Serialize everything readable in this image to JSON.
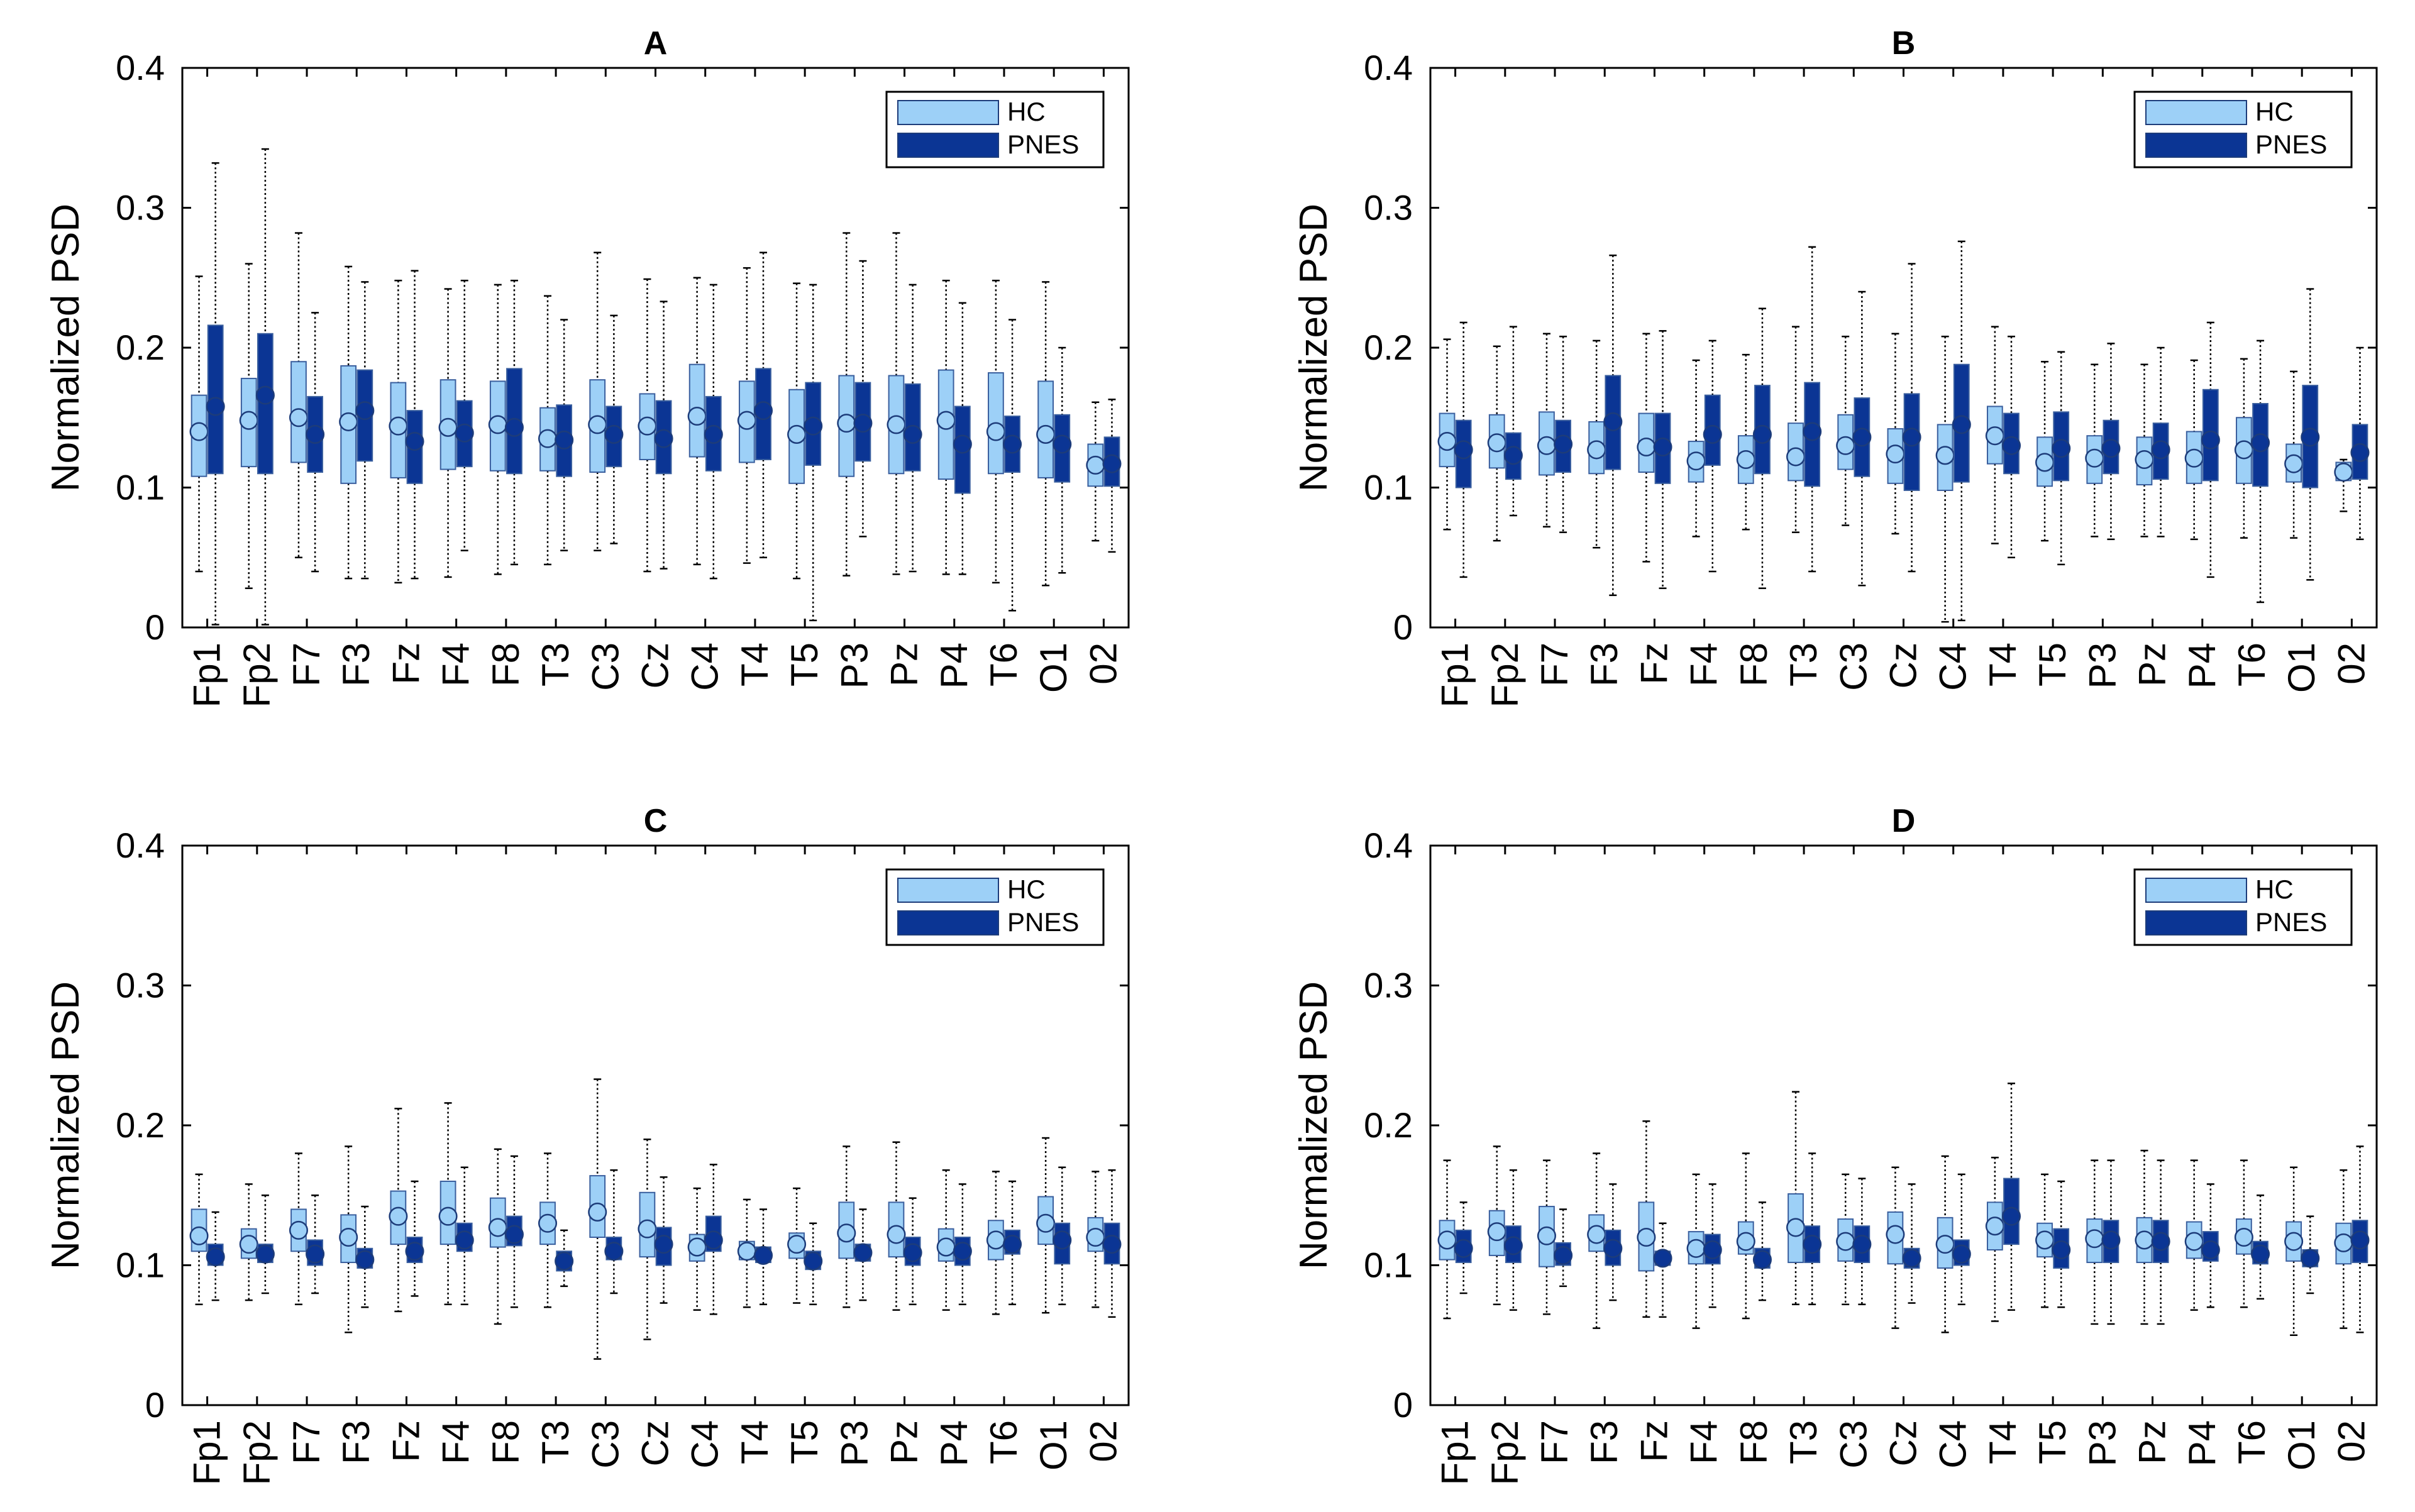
{
  "figure": {
    "colors": {
      "hc": "#9dd0f7",
      "pnes": "#0b3594",
      "frame": "#000000",
      "whisker": "#000000"
    },
    "legend": {
      "hc": "HC",
      "pnes": "PNES"
    }
  },
  "chart_data": [
    {
      "type": "box",
      "title": "A",
      "ylabel": "Normalized  PSD",
      "ylim": [
        0,
        0.4
      ],
      "yticks": [
        "0",
        "0.1",
        "0.2",
        "0.3",
        "0.4"
      ],
      "legend_position": "top-right",
      "categories": [
        "Fp1",
        "Fp2",
        "F7",
        "F3",
        "Fz",
        "F4",
        "F8",
        "T3",
        "C3",
        "Cz",
        "C4",
        "T4",
        "T5",
        "P3",
        "Pz",
        "P4",
        "T6",
        "O1",
        "02"
      ],
      "series": [
        {
          "name": "HC",
          "q1": [
            0.108,
            0.115,
            0.118,
            0.103,
            0.107,
            0.113,
            0.112,
            0.112,
            0.111,
            0.12,
            0.122,
            0.118,
            0.103,
            0.108,
            0.11,
            0.106,
            0.11,
            0.107,
            0.101
          ],
          "median": [
            0.14,
            0.148,
            0.15,
            0.147,
            0.144,
            0.143,
            0.145,
            0.135,
            0.145,
            0.144,
            0.151,
            0.148,
            0.138,
            0.146,
            0.145,
            0.148,
            0.14,
            0.138,
            0.116
          ],
          "q3": [
            0.166,
            0.178,
            0.19,
            0.187,
            0.175,
            0.177,
            0.176,
            0.157,
            0.177,
            0.167,
            0.188,
            0.176,
            0.17,
            0.18,
            0.18,
            0.184,
            0.182,
            0.176,
            0.131
          ],
          "whisker_low": [
            0.04,
            0.028,
            0.05,
            0.035,
            0.032,
            0.036,
            0.038,
            0.045,
            0.055,
            0.04,
            0.045,
            0.046,
            0.035,
            0.037,
            0.038,
            0.038,
            0.032,
            0.03,
            0.062
          ],
          "whisker_high": [
            0.251,
            0.26,
            0.282,
            0.258,
            0.248,
            0.242,
            0.245,
            0.237,
            0.268,
            0.249,
            0.25,
            0.257,
            0.246,
            0.282,
            0.282,
            0.248,
            0.248,
            0.247,
            0.161
          ]
        },
        {
          "name": "PNES",
          "q1": [
            0.11,
            0.11,
            0.111,
            0.119,
            0.103,
            0.115,
            0.11,
            0.108,
            0.115,
            0.11,
            0.112,
            0.12,
            0.116,
            0.119,
            0.112,
            0.096,
            0.111,
            0.104,
            0.101
          ],
          "median": [
            0.158,
            0.166,
            0.138,
            0.155,
            0.133,
            0.139,
            0.143,
            0.134,
            0.138,
            0.135,
            0.138,
            0.155,
            0.144,
            0.146,
            0.138,
            0.131,
            0.131,
            0.131,
            0.117
          ],
          "q3": [
            0.216,
            0.21,
            0.165,
            0.184,
            0.155,
            0.162,
            0.185,
            0.159,
            0.158,
            0.162,
            0.165,
            0.185,
            0.175,
            0.175,
            0.174,
            0.158,
            0.151,
            0.152,
            0.136
          ],
          "whisker_low": [
            0.002,
            0.002,
            0.04,
            0.035,
            0.035,
            0.055,
            0.045,
            0.055,
            0.06,
            0.042,
            0.035,
            0.05,
            0.005,
            0.065,
            0.04,
            0.038,
            0.012,
            0.039,
            0.054
          ],
          "whisker_high": [
            0.332,
            0.342,
            0.225,
            0.247,
            0.255,
            0.248,
            0.248,
            0.22,
            0.223,
            0.233,
            0.245,
            0.268,
            0.245,
            0.262,
            0.245,
            0.232,
            0.22,
            0.2,
            0.163
          ]
        }
      ]
    },
    {
      "type": "box",
      "title": "B",
      "ylabel": "Normalized  PSD",
      "ylim": [
        0,
        0.4
      ],
      "yticks": [
        "0",
        "0.1",
        "0.2",
        "0.3",
        "0.4"
      ],
      "legend_position": "top-right",
      "categories": [
        "Fp1",
        "Fp2",
        "F7",
        "F3",
        "Fz",
        "F4",
        "F8",
        "T3",
        "C3",
        "Cz",
        "C4",
        "T4",
        "T5",
        "P3",
        "Pz",
        "P4",
        "T6",
        "O1",
        "02"
      ],
      "series": [
        {
          "name": "HC",
          "q1": [
            0.115,
            0.114,
            0.109,
            0.11,
            0.111,
            0.104,
            0.103,
            0.105,
            0.113,
            0.103,
            0.098,
            0.117,
            0.101,
            0.103,
            0.102,
            0.103,
            0.103,
            0.104,
            0.105
          ],
          "median": [
            0.133,
            0.132,
            0.13,
            0.127,
            0.129,
            0.119,
            0.12,
            0.122,
            0.13,
            0.124,
            0.123,
            0.137,
            0.118,
            0.121,
            0.12,
            0.121,
            0.127,
            0.117,
            0.111
          ],
          "q3": [
            0.153,
            0.152,
            0.154,
            0.147,
            0.153,
            0.133,
            0.137,
            0.146,
            0.152,
            0.142,
            0.145,
            0.158,
            0.136,
            0.137,
            0.136,
            0.14,
            0.15,
            0.131,
            0.118
          ],
          "whisker_low": [
            0.07,
            0.062,
            0.072,
            0.057,
            0.047,
            0.065,
            0.07,
            0.068,
            0.073,
            0.067,
            0.004,
            0.06,
            0.062,
            0.065,
            0.065,
            0.063,
            0.064,
            0.064,
            0.083
          ],
          "whisker_high": [
            0.206,
            0.201,
            0.21,
            0.205,
            0.21,
            0.191,
            0.195,
            0.215,
            0.208,
            0.21,
            0.208,
            0.215,
            0.19,
            0.188,
            0.188,
            0.191,
            0.192,
            0.183,
            0.12
          ]
        },
        {
          "name": "PNES",
          "q1": [
            0.1,
            0.106,
            0.111,
            0.113,
            0.103,
            0.116,
            0.11,
            0.101,
            0.108,
            0.098,
            0.104,
            0.11,
            0.105,
            0.11,
            0.106,
            0.105,
            0.101,
            0.1,
            0.106
          ],
          "median": [
            0.127,
            0.123,
            0.131,
            0.147,
            0.129,
            0.138,
            0.138,
            0.14,
            0.136,
            0.136,
            0.145,
            0.13,
            0.128,
            0.128,
            0.127,
            0.134,
            0.132,
            0.136,
            0.125
          ],
          "q3": [
            0.148,
            0.139,
            0.148,
            0.18,
            0.153,
            0.166,
            0.173,
            0.175,
            0.164,
            0.167,
            0.188,
            0.153,
            0.154,
            0.148,
            0.146,
            0.17,
            0.16,
            0.173,
            0.145
          ],
          "whisker_low": [
            0.036,
            0.08,
            0.068,
            0.023,
            0.028,
            0.04,
            0.028,
            0.04,
            0.03,
            0.04,
            0.005,
            0.05,
            0.045,
            0.063,
            0.065,
            0.036,
            0.018,
            0.034,
            0.063
          ],
          "whisker_high": [
            0.218,
            0.215,
            0.208,
            0.266,
            0.212,
            0.205,
            0.228,
            0.272,
            0.24,
            0.26,
            0.276,
            0.208,
            0.197,
            0.203,
            0.2,
            0.218,
            0.205,
            0.242,
            0.2
          ]
        }
      ]
    },
    {
      "type": "box",
      "title": "C",
      "ylabel": "Normalized  PSD",
      "ylim": [
        0,
        0.4
      ],
      "yticks": [
        "0",
        "0.1",
        "0.2",
        "0.3",
        "0.4"
      ],
      "legend_position": "top-right",
      "categories": [
        "Fp1",
        "Fp2",
        "F7",
        "F3",
        "Fz",
        "F4",
        "F8",
        "T3",
        "C3",
        "Cz",
        "C4",
        "T4",
        "T5",
        "P3",
        "Pz",
        "P4",
        "T6",
        "O1",
        "02"
      ],
      "series": [
        {
          "name": "HC",
          "q1": [
            0.11,
            0.105,
            0.11,
            0.102,
            0.115,
            0.115,
            0.113,
            0.115,
            0.12,
            0.106,
            0.103,
            0.104,
            0.105,
            0.105,
            0.106,
            0.103,
            0.104,
            0.115,
            0.11
          ],
          "median": [
            0.121,
            0.115,
            0.125,
            0.12,
            0.135,
            0.135,
            0.127,
            0.13,
            0.138,
            0.126,
            0.113,
            0.11,
            0.115,
            0.123,
            0.122,
            0.113,
            0.118,
            0.13,
            0.12
          ],
          "q3": [
            0.14,
            0.126,
            0.14,
            0.136,
            0.153,
            0.16,
            0.148,
            0.145,
            0.164,
            0.152,
            0.122,
            0.117,
            0.123,
            0.145,
            0.145,
            0.126,
            0.132,
            0.149,
            0.134
          ],
          "whisker_low": [
            0.072,
            0.075,
            0.072,
            0.052,
            0.067,
            0.072,
            0.058,
            0.07,
            0.033,
            0.047,
            0.068,
            0.07,
            0.073,
            0.07,
            0.068,
            0.068,
            0.065,
            0.066,
            0.07
          ],
          "whisker_high": [
            0.165,
            0.158,
            0.18,
            0.185,
            0.212,
            0.216,
            0.183,
            0.18,
            0.233,
            0.19,
            0.155,
            0.147,
            0.155,
            0.185,
            0.188,
            0.168,
            0.167,
            0.191,
            0.167
          ]
        },
        {
          "name": "PNES",
          "q1": [
            0.1,
            0.102,
            0.1,
            0.098,
            0.102,
            0.11,
            0.114,
            0.096,
            0.104,
            0.1,
            0.11,
            0.102,
            0.097,
            0.103,
            0.1,
            0.1,
            0.108,
            0.101,
            0.101
          ],
          "median": [
            0.106,
            0.108,
            0.108,
            0.104,
            0.11,
            0.118,
            0.122,
            0.103,
            0.11,
            0.115,
            0.118,
            0.107,
            0.103,
            0.109,
            0.109,
            0.11,
            0.115,
            0.118,
            0.115
          ],
          "q3": [
            0.115,
            0.115,
            0.118,
            0.112,
            0.12,
            0.13,
            0.135,
            0.11,
            0.12,
            0.127,
            0.135,
            0.113,
            0.11,
            0.115,
            0.12,
            0.12,
            0.125,
            0.13,
            0.13
          ],
          "whisker_low": [
            0.075,
            0.08,
            0.08,
            0.07,
            0.078,
            0.072,
            0.07,
            0.085,
            0.08,
            0.073,
            0.065,
            0.072,
            0.072,
            0.075,
            0.072,
            0.072,
            0.072,
            0.072,
            0.063
          ],
          "whisker_high": [
            0.138,
            0.15,
            0.15,
            0.142,
            0.16,
            0.17,
            0.178,
            0.125,
            0.168,
            0.163,
            0.172,
            0.14,
            0.13,
            0.14,
            0.148,
            0.158,
            0.16,
            0.17,
            0.168
          ]
        }
      ]
    },
    {
      "type": "box",
      "title": "D",
      "ylabel": "Normalized  PSD",
      "ylim": [
        0,
        0.4
      ],
      "yticks": [
        "0",
        "0.1",
        "0.2",
        "0.3",
        "0.4"
      ],
      "legend_position": "top-right",
      "categories": [
        "Fp1",
        "Fp2",
        "F7",
        "F3",
        "Fz",
        "F4",
        "F8",
        "T3",
        "C3",
        "Cz",
        "C4",
        "T4",
        "T5",
        "P3",
        "Pz",
        "P4",
        "T6",
        "O1",
        "02"
      ],
      "series": [
        {
          "name": "HC",
          "q1": [
            0.104,
            0.107,
            0.099,
            0.11,
            0.096,
            0.101,
            0.108,
            0.102,
            0.103,
            0.101,
            0.098,
            0.111,
            0.106,
            0.102,
            0.102,
            0.105,
            0.108,
            0.103,
            0.101
          ],
          "median": [
            0.118,
            0.124,
            0.121,
            0.122,
            0.12,
            0.112,
            0.117,
            0.127,
            0.117,
            0.122,
            0.115,
            0.128,
            0.118,
            0.119,
            0.118,
            0.117,
            0.12,
            0.117,
            0.116
          ],
          "q3": [
            0.132,
            0.139,
            0.142,
            0.136,
            0.145,
            0.124,
            0.131,
            0.151,
            0.133,
            0.138,
            0.134,
            0.145,
            0.13,
            0.133,
            0.134,
            0.131,
            0.133,
            0.131,
            0.13
          ],
          "whisker_low": [
            0.062,
            0.072,
            0.065,
            0.055,
            0.063,
            0.055,
            0.062,
            0.072,
            0.072,
            0.055,
            0.052,
            0.06,
            0.07,
            0.058,
            0.058,
            0.068,
            0.07,
            0.05,
            0.055
          ],
          "whisker_high": [
            0.175,
            0.185,
            0.175,
            0.18,
            0.203,
            0.165,
            0.18,
            0.224,
            0.165,
            0.17,
            0.178,
            0.177,
            0.165,
            0.175,
            0.182,
            0.175,
            0.175,
            0.17,
            0.168
          ]
        },
        {
          "name": "PNES",
          "q1": [
            0.102,
            0.102,
            0.1,
            0.1,
            0.1,
            0.101,
            0.098,
            0.102,
            0.102,
            0.098,
            0.1,
            0.115,
            0.098,
            0.102,
            0.102,
            0.103,
            0.101,
            0.099,
            0.102
          ],
          "median": [
            0.112,
            0.114,
            0.107,
            0.112,
            0.105,
            0.111,
            0.104,
            0.115,
            0.115,
            0.105,
            0.108,
            0.135,
            0.111,
            0.118,
            0.117,
            0.111,
            0.108,
            0.105,
            0.118
          ],
          "q3": [
            0.125,
            0.128,
            0.116,
            0.125,
            0.11,
            0.122,
            0.112,
            0.128,
            0.128,
            0.112,
            0.118,
            0.162,
            0.126,
            0.132,
            0.132,
            0.124,
            0.117,
            0.111,
            0.132
          ],
          "whisker_low": [
            0.08,
            0.068,
            0.085,
            0.075,
            0.063,
            0.07,
            0.075,
            0.072,
            0.072,
            0.073,
            0.072,
            0.068,
            0.07,
            0.058,
            0.058,
            0.07,
            0.076,
            0.08,
            0.052
          ],
          "whisker_high": [
            0.145,
            0.168,
            0.14,
            0.158,
            0.13,
            0.158,
            0.145,
            0.18,
            0.162,
            0.158,
            0.165,
            0.23,
            0.16,
            0.175,
            0.175,
            0.158,
            0.15,
            0.135,
            0.185
          ]
        }
      ]
    }
  ]
}
